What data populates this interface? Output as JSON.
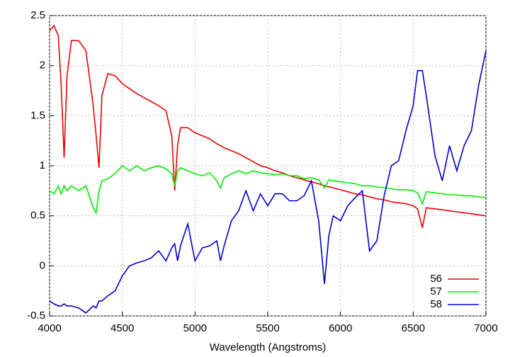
{
  "chart_data": {
    "type": "line",
    "x_label": "Wavelength (Angstroms)",
    "xlim": [
      4000,
      7000
    ],
    "xticks": [
      4000,
      4500,
      5000,
      5500,
      6000,
      6500,
      7000
    ],
    "ylim": [
      -0.5,
      2.5
    ],
    "yticks": [
      -0.5,
      0,
      0.5,
      1,
      1.5,
      2,
      2.5
    ],
    "grid": true,
    "legend": "lower right",
    "x": [
      4000,
      4030,
      4060,
      4080,
      4100,
      4120,
      4150,
      4200,
      4250,
      4300,
      4320,
      4340,
      4360,
      4400,
      4450,
      4500,
      4550,
      4600,
      4650,
      4700,
      4750,
      4800,
      4840,
      4860,
      4880,
      4900,
      4950,
      5000,
      5050,
      5100,
      5150,
      5175,
      5200,
      5250,
      5300,
      5350,
      5400,
      5450,
      5500,
      5550,
      5600,
      5650,
      5700,
      5750,
      5800,
      5850,
      5890,
      5920,
      5950,
      6000,
      6050,
      6100,
      6150,
      6200,
      6250,
      6300,
      6350,
      6400,
      6450,
      6500,
      6530,
      6563,
      6590,
      6650,
      6700,
      6750,
      6800,
      6850,
      6900,
      6950,
      7000
    ],
    "series": [
      {
        "name": "56",
        "color": "#ee0000",
        "values": [
          2.35,
          2.4,
          2.3,
          1.8,
          1.08,
          1.9,
          2.25,
          2.25,
          2.15,
          1.6,
          1.3,
          0.98,
          1.7,
          1.92,
          1.9,
          1.82,
          1.77,
          1.72,
          1.68,
          1.64,
          1.6,
          1.55,
          1.3,
          0.75,
          1.2,
          1.38,
          1.38,
          1.33,
          1.3,
          1.27,
          1.22,
          1.2,
          1.18,
          1.15,
          1.12,
          1.08,
          1.04,
          1.0,
          0.98,
          0.95,
          0.93,
          0.9,
          0.88,
          0.86,
          0.84,
          0.82,
          0.8,
          0.79,
          0.78,
          0.76,
          0.74,
          0.72,
          0.71,
          0.69,
          0.67,
          0.66,
          0.64,
          0.63,
          0.62,
          0.6,
          0.57,
          0.38,
          0.58,
          0.57,
          0.56,
          0.55,
          0.54,
          0.53,
          0.52,
          0.51,
          0.5
        ]
      },
      {
        "name": "57",
        "color": "#00ee00",
        "values": [
          0.75,
          0.72,
          0.8,
          0.72,
          0.8,
          0.75,
          0.8,
          0.75,
          0.8,
          0.58,
          0.53,
          0.75,
          0.85,
          0.87,
          0.92,
          1.0,
          0.95,
          1.0,
          0.95,
          0.98,
          1.0,
          0.97,
          0.92,
          0.8,
          0.95,
          0.98,
          0.95,
          0.92,
          0.9,
          0.93,
          0.85,
          0.78,
          0.88,
          0.92,
          0.95,
          0.92,
          0.95,
          0.93,
          0.92,
          0.91,
          0.92,
          0.9,
          0.9,
          0.87,
          0.88,
          0.86,
          0.78,
          0.86,
          0.85,
          0.84,
          0.83,
          0.82,
          0.8,
          0.8,
          0.79,
          0.78,
          0.77,
          0.76,
          0.76,
          0.75,
          0.73,
          0.62,
          0.74,
          0.73,
          0.72,
          0.71,
          0.71,
          0.7,
          0.7,
          0.69,
          0.68
        ]
      },
      {
        "name": "58",
        "color": "#0000cc",
        "values": [
          -0.35,
          -0.38,
          -0.4,
          -0.4,
          -0.38,
          -0.4,
          -0.4,
          -0.42,
          -0.47,
          -0.4,
          -0.42,
          -0.35,
          -0.35,
          -0.3,
          -0.25,
          -0.1,
          0.0,
          0.03,
          0.05,
          0.08,
          0.15,
          0.05,
          0.18,
          0.22,
          0.05,
          0.2,
          0.42,
          0.05,
          0.18,
          0.2,
          0.25,
          0.05,
          0.2,
          0.45,
          0.55,
          0.75,
          0.55,
          0.72,
          0.6,
          0.72,
          0.72,
          0.65,
          0.65,
          0.7,
          0.85,
          0.45,
          -0.18,
          0.3,
          0.5,
          0.45,
          0.6,
          0.68,
          0.75,
          0.15,
          0.25,
          0.7,
          1.0,
          1.05,
          1.35,
          1.6,
          1.95,
          1.95,
          1.7,
          1.1,
          0.85,
          1.2,
          0.95,
          1.2,
          1.35,
          1.8,
          2.15
        ]
      }
    ]
  }
}
